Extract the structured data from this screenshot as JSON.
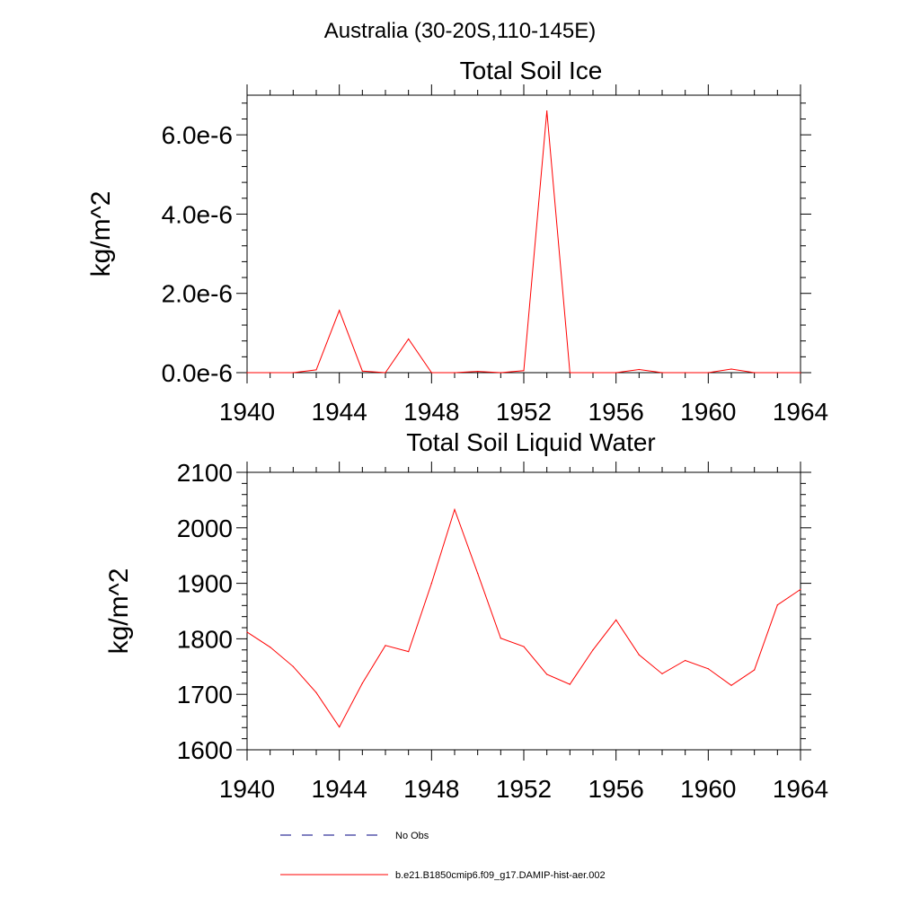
{
  "suptitle": "Australia (30-20S,110-145E)",
  "colors": {
    "series": "#ff0000",
    "no_obs": "#000080",
    "axes": "#000000"
  },
  "legend": {
    "no_obs_label": "No Obs",
    "series_label": "b.e21.B1850cmip6.f09_g17.DAMIP-hist-aer.002",
    "placement": "bottom-center"
  },
  "chart_data": [
    {
      "type": "line",
      "title": "Total Soil Ice",
      "ylabel": "kg/m^2",
      "xlabel": "",
      "xlim": [
        1940,
        1964
      ],
      "ylim": [
        0,
        7e-06
      ],
      "xticks": [
        1940,
        1944,
        1948,
        1952,
        1956,
        1960,
        1964
      ],
      "xtick_labels": [
        "1940",
        "1944",
        "1948",
        "1952",
        "1956",
        "1960",
        "1964"
      ],
      "yticks": [
        0,
        2e-06,
        4e-06,
        6e-06
      ],
      "ytick_labels": [
        "0.0e-6",
        "2.0e-6",
        "4.0e-6",
        "6.0e-6"
      ],
      "grid": false,
      "series": [
        {
          "name": "b.e21.B1850cmip6.f09_g17.DAMIP-hist-aer.002",
          "x": [
            1940,
            1941,
            1942,
            1943,
            1944,
            1945,
            1946,
            1947,
            1948,
            1949,
            1950,
            1951,
            1952,
            1953,
            1954,
            1955,
            1956,
            1957,
            1958,
            1959,
            1960,
            1961,
            1962,
            1963,
            1964
          ],
          "values": [
            0,
            0,
            0,
            7e-08,
            1.57e-06,
            4e-08,
            0,
            8.5e-07,
            0,
            0,
            3e-08,
            0,
            5e-08,
            6.6e-06,
            0,
            0,
            0,
            8e-08,
            0,
            0,
            0,
            9e-08,
            0,
            0,
            0
          ]
        }
      ]
    },
    {
      "type": "line",
      "title": "Total Soil Liquid Water",
      "ylabel": "kg/m^2",
      "xlabel": "",
      "xlim": [
        1940,
        1964
      ],
      "ylim": [
        1600,
        2100
      ],
      "xticks": [
        1940,
        1944,
        1948,
        1952,
        1956,
        1960,
        1964
      ],
      "xtick_labels": [
        "1940",
        "1944",
        "1948",
        "1952",
        "1956",
        "1960",
        "1964"
      ],
      "yticks": [
        1600,
        1700,
        1800,
        1900,
        2000,
        2100
      ],
      "ytick_labels": [
        "1600",
        "1700",
        "1800",
        "1900",
        "2000",
        "2100"
      ],
      "grid": false,
      "series": [
        {
          "name": "b.e21.B1850cmip6.f09_g17.DAMIP-hist-aer.002",
          "x": [
            1940,
            1941,
            1942,
            1943,
            1944,
            1945,
            1946,
            1947,
            1948,
            1949,
            1950,
            1951,
            1952,
            1953,
            1954,
            1955,
            1956,
            1957,
            1958,
            1959,
            1960,
            1961,
            1962,
            1963,
            1964
          ],
          "values": [
            1812,
            1785,
            1750,
            1703,
            1641,
            1720,
            1788,
            1777,
            1900,
            2033,
            1918,
            1801,
            1786,
            1736,
            1718,
            1780,
            1834,
            1771,
            1737,
            1761,
            1746,
            1716,
            1744,
            1861,
            1889
          ]
        }
      ]
    }
  ]
}
